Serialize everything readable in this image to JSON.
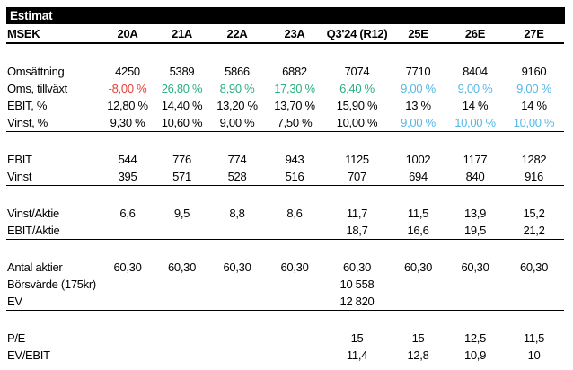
{
  "colors": {
    "negative": "#e8403a",
    "positive": "#2bb07f",
    "estimate": "#56b7e6",
    "header_bg": "#000000",
    "header_fg": "#ffffff"
  },
  "chart_data": {
    "type": "table",
    "title": "Estimat",
    "columns": [
      "MSEK",
      "20A",
      "21A",
      "22A",
      "23A",
      "Q3'24 (R12)",
      "25E",
      "26E",
      "27E"
    ],
    "groups": [
      {
        "rows": [
          {
            "label": "Omsättning",
            "values": [
              "4250",
              "5389",
              "5866",
              "6882",
              "7074",
              "7710",
              "8404",
              "9160"
            ]
          },
          {
            "label": "Oms, tillväxt",
            "values": [
              "-8,00 %",
              "26,80 %",
              "8,90 %",
              "17,30 %",
              "6,40 %",
              "9,00 %",
              "9,00 %",
              "9,00 %"
            ],
            "styles": [
              "negative",
              "positive",
              "positive",
              "positive",
              "positive",
              "estimate",
              "estimate",
              "estimate"
            ]
          },
          {
            "label": "EBIT, %",
            "values": [
              "12,80 %",
              "14,40 %",
              "13,20 %",
              "13,70 %",
              "15,90 %",
              "13 %",
              "14 %",
              "14 %"
            ]
          },
          {
            "label": "Vinst, %",
            "values": [
              "9,30 %",
              "10,60 %",
              "9,00 %",
              "7,50 %",
              "10,00 %",
              "9,00 %",
              "10,00 %",
              "10,00 %"
            ],
            "styles": [
              null,
              null,
              null,
              null,
              null,
              "estimate",
              "estimate",
              "estimate"
            ]
          }
        ]
      },
      {
        "rows": [
          {
            "label": "EBIT",
            "values": [
              "544",
              "776",
              "774",
              "943",
              "1125",
              "1002",
              "1177",
              "1282"
            ]
          },
          {
            "label": "Vinst",
            "values": [
              "395",
              "571",
              "528",
              "516",
              "707",
              "694",
              "840",
              "916"
            ]
          }
        ]
      },
      {
        "rows": [
          {
            "label": "Vinst/Aktie",
            "values": [
              "6,6",
              "9,5",
              "8,8",
              "8,6",
              "11,7",
              "11,5",
              "13,9",
              "15,2"
            ]
          },
          {
            "label": "EBIT/Aktie",
            "values": [
              "",
              "",
              "",
              "",
              "18,7",
              "16,6",
              "19,5",
              "21,2"
            ]
          }
        ]
      },
      {
        "rows": [
          {
            "label": "Antal aktier",
            "values": [
              "60,30",
              "60,30",
              "60,30",
              "60,30",
              "60,30",
              "60,30",
              "60,30",
              "60,30"
            ]
          },
          {
            "label": "Börsvärde (175kr)",
            "values": [
              "",
              "",
              "",
              "",
              "10 558",
              "",
              "",
              ""
            ]
          },
          {
            "label": "EV",
            "values": [
              "",
              "",
              "",
              "",
              "12 820",
              "",
              "",
              ""
            ]
          }
        ]
      },
      {
        "no_border": true,
        "rows": [
          {
            "label": "P/E",
            "values": [
              "",
              "",
              "",
              "",
              "15",
              "15",
              "12,5",
              "11,5"
            ]
          },
          {
            "label": "EV/EBIT",
            "values": [
              "",
              "",
              "",
              "",
              "11,4",
              "12,8",
              "10,9",
              "10"
            ]
          }
        ]
      }
    ]
  }
}
